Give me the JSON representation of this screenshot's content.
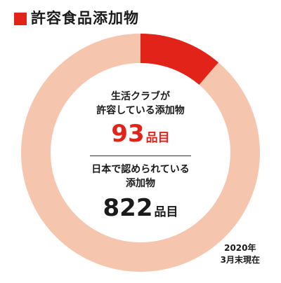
{
  "header": {
    "title": "許容食品添加物",
    "marker_color": "#e2231a"
  },
  "chart_data": {
    "type": "pie",
    "title": "許容食品添加物",
    "style": "donut",
    "slices": [
      {
        "label": "生活クラブが許容している添加物",
        "value": 93,
        "color": "#e2231a"
      },
      {
        "label": "日本で認められている添加物",
        "value": 822,
        "color": "#f5c5ae"
      }
    ],
    "total": 822
  },
  "permitted": {
    "label_line1": "生活クラブが",
    "label_line2": "許容している添加物",
    "count": "93",
    "unit": "品目",
    "color": "#e2231a"
  },
  "approved": {
    "label_line1": "日本で認められている",
    "label_line2": "添加物",
    "count": "822",
    "unit": "品目",
    "color": "#f5c5ae"
  },
  "note": {
    "line1": "2020年",
    "line2": "3月末現在"
  }
}
